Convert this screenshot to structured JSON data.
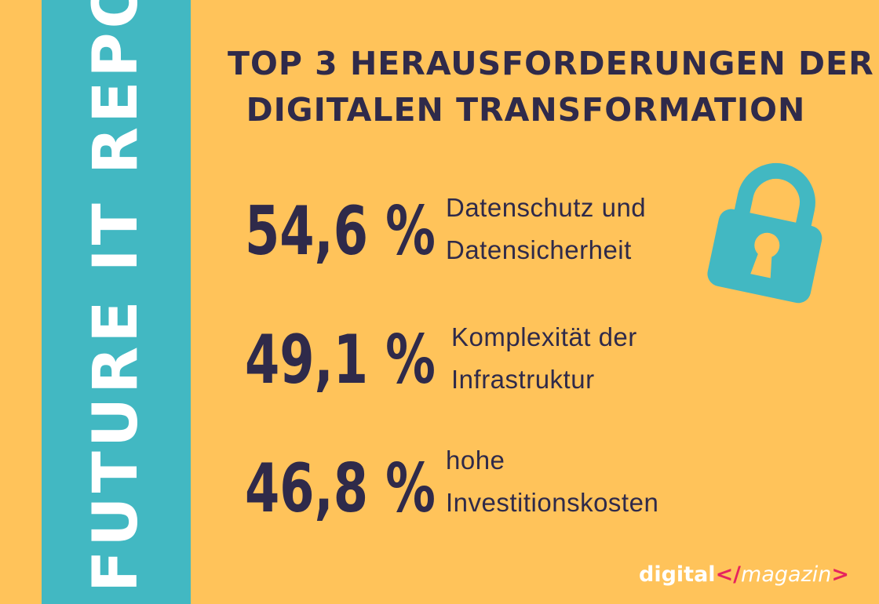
{
  "side_title": "FUTURE IT REPORT",
  "headline": {
    "line1": "TOP 3 HERAUSFORDERUNGEN DER",
    "line2": "DIGITALEN TRANSFORMATION"
  },
  "stats": [
    {
      "value": "54,6 %",
      "label_line1": "Datenschutz und",
      "label_line2": "Datensicherheit"
    },
    {
      "value": "49,1 %",
      "label_line1": "Komplexität der",
      "label_line2": "Infrastruktur"
    },
    {
      "value": "46,8 %",
      "label_line1": "hohe",
      "label_line2": "Investitionskosten"
    }
  ],
  "brand": {
    "part1": "digital",
    "part2": "</",
    "part3": "magazin",
    "part4": ">"
  },
  "icons": {
    "lock": "lock-icon"
  },
  "colors": {
    "background": "#ffc35a",
    "band": "#42b8c2",
    "text_dark": "#2f2a4a",
    "accent": "#e6245e",
    "white": "#ffffff"
  }
}
